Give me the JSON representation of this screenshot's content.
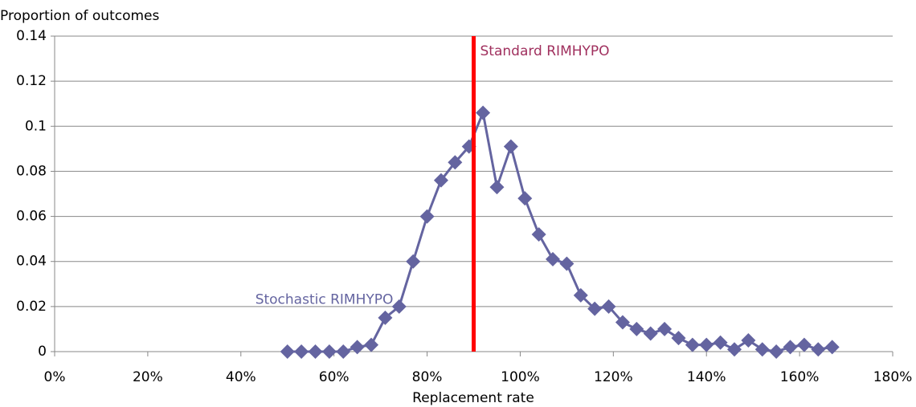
{
  "chart_data": {
    "type": "line",
    "y_axis_label": "Proportion of outcomes",
    "x_axis_label": "Replacement rate",
    "x": [
      50,
      53,
      56,
      59,
      62,
      65,
      68,
      71,
      74,
      77,
      80,
      83,
      86,
      89,
      92,
      95,
      98,
      101,
      104,
      107,
      110,
      113,
      116,
      119,
      122,
      125,
      128,
      131,
      134,
      137,
      140,
      143,
      146,
      149,
      152,
      155,
      158,
      161,
      164,
      167
    ],
    "series": [
      {
        "name": "Stochastic RIMHYPO",
        "color": "#6464a0",
        "values": [
          0,
          0,
          0,
          0,
          0,
          0.002,
          0.003,
          0.015,
          0.02,
          0.04,
          0.06,
          0.076,
          0.084,
          0.091,
          0.106,
          0.073,
          0.091,
          0.068,
          0.052,
          0.041,
          0.039,
          0.025,
          0.019,
          0.02,
          0.013,
          0.01,
          0.008,
          0.01,
          0.006,
          0.003,
          0.003,
          0.004,
          0.001,
          0.005,
          0.001,
          0,
          0.002,
          0.003,
          0.001,
          0.002
        ]
      }
    ],
    "reference_line": {
      "x": 90,
      "label": "Standard RIMHYPO",
      "color": "#ff0000",
      "label_color": "#a0305e"
    },
    "xlim": [
      0,
      180
    ],
    "xticks": [
      {
        "value": 0,
        "label": "0%"
      },
      {
        "value": 20,
        "label": "20%"
      },
      {
        "value": 40,
        "label": "40%"
      },
      {
        "value": 60,
        "label": "60%"
      },
      {
        "value": 80,
        "label": "80%"
      },
      {
        "value": 100,
        "label": "100%"
      },
      {
        "value": 120,
        "label": "120%"
      },
      {
        "value": 140,
        "label": "140%"
      },
      {
        "value": 160,
        "label": "160%"
      },
      {
        "value": 180,
        "label": "180%"
      }
    ],
    "ylim": [
      0,
      0.14
    ],
    "yticks": [
      0,
      0.02,
      0.04,
      0.06,
      0.08,
      0.1,
      0.12,
      0.14
    ],
    "grid": true
  }
}
